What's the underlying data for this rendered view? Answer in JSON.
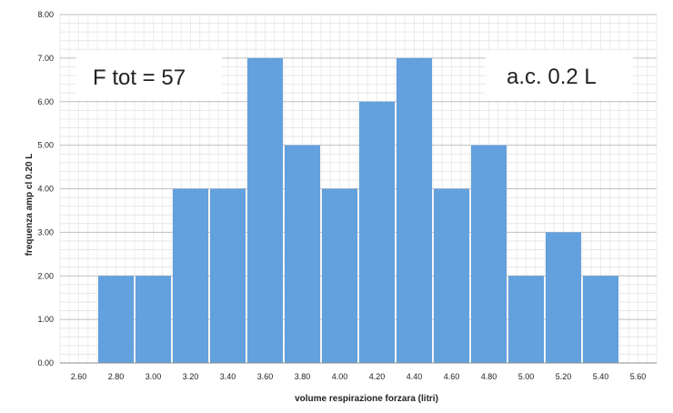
{
  "chart_data": {
    "type": "bar",
    "histogram": true,
    "x_ticks": [
      "2.60",
      "2.80",
      "3.00",
      "3.20",
      "3.40",
      "3.60",
      "3.80",
      "4.00",
      "4.20",
      "4.40",
      "4.60",
      "4.80",
      "5.00",
      "5.20",
      "5.40",
      "5.60"
    ],
    "bins": [
      {
        "x": 2.8,
        "value": 2
      },
      {
        "x": 3.0,
        "value": 2
      },
      {
        "x": 3.2,
        "value": 4
      },
      {
        "x": 3.4,
        "value": 4
      },
      {
        "x": 3.6,
        "value": 7
      },
      {
        "x": 3.8,
        "value": 5
      },
      {
        "x": 4.0,
        "value": 4
      },
      {
        "x": 4.2,
        "value": 6
      },
      {
        "x": 4.4,
        "value": 7
      },
      {
        "x": 4.6,
        "value": 4
      },
      {
        "x": 4.8,
        "value": 5
      },
      {
        "x": 5.0,
        "value": 2
      },
      {
        "x": 5.2,
        "value": 3
      },
      {
        "x": 5.4,
        "value": 2
      }
    ],
    "bin_width": 0.2,
    "xlim": [
      2.5,
      5.7
    ],
    "ylim": [
      0,
      8
    ],
    "y_ticks": [
      "0.00",
      "1.00",
      "2.00",
      "3.00",
      "4.00",
      "5.00",
      "6.00",
      "7.00",
      "8.00"
    ],
    "xlabel": "volume respirazione forzara (litri)",
    "ylabel": "frequenza amp cl 0.20 L",
    "grid": true,
    "bar_color": "#62a0de",
    "annotations": [
      {
        "text": "F tot = 57",
        "color": "#0a0ad8",
        "position": "top-left"
      },
      {
        "text": "a.c. 0.2 L",
        "color": "#e01010",
        "position": "top-right"
      }
    ]
  }
}
